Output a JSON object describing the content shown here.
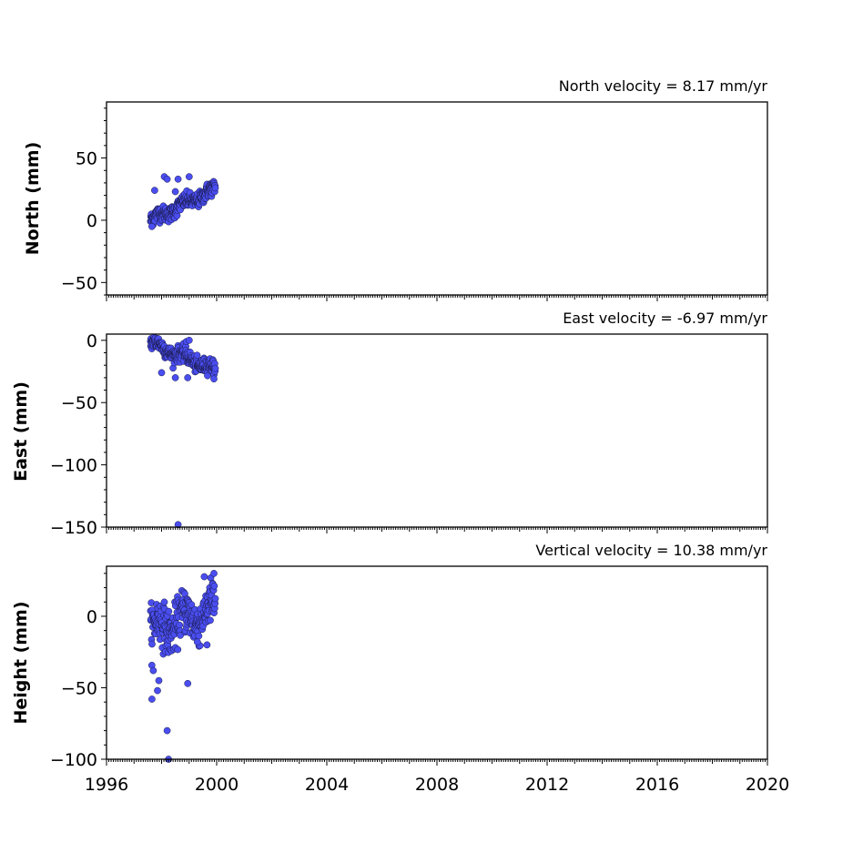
{
  "chart_data": [
    {
      "type": "scatter",
      "title": "North velocity = 8.17 mm/yr",
      "xlabel": "",
      "ylabel": "North (mm)",
      "xlim": [
        1996,
        2020
      ],
      "ylim": [
        -60,
        95
      ],
      "yticks": [
        {
          "value": 50,
          "label": "50"
        },
        {
          "value": 0,
          "label": "0"
        },
        {
          "value": -50,
          "label": "−50"
        }
      ],
      "grid": false,
      "color": "#4a4ef0",
      "series": [
        {
          "x_range": [
            1997.6,
            1999.95
          ],
          "trend_start": 0,
          "trend_end": 25,
          "noise": 5,
          "outliers": [
            [
              1998.1,
              35
            ],
            [
              1998.2,
              33
            ],
            [
              1998.6,
              33
            ],
            [
              1999.0,
              35
            ],
            [
              1998.5,
              23
            ],
            [
              1997.75,
              24
            ],
            [
              1997.65,
              -5
            ]
          ]
        }
      ]
    },
    {
      "type": "scatter",
      "title": "East velocity = -6.97 mm/yr",
      "xlabel": "",
      "ylabel": "East (mm)",
      "xlim": [
        1996,
        2020
      ],
      "ylim": [
        -150,
        5
      ],
      "yticks": [
        {
          "value": 0,
          "label": "0"
        },
        {
          "value": -50,
          "label": "−50"
        },
        {
          "value": -100,
          "label": "−100"
        },
        {
          "value": -150,
          "label": "−150"
        }
      ],
      "grid": false,
      "color": "#4a4ef0",
      "series": [
        {
          "x_range": [
            1997.6,
            1999.95
          ],
          "trend_start": -2,
          "trend_end": -24,
          "noise": 5,
          "outliers": [
            [
              1998.6,
              -148
            ],
            [
              1998.9,
              -1
            ],
            [
              1999.0,
              0
            ],
            [
              1998.0,
              -26
            ],
            [
              1998.5,
              -30
            ],
            [
              1998.95,
              -30
            ],
            [
              1999.9,
              -31
            ]
          ]
        }
      ]
    },
    {
      "type": "scatter",
      "title": "Vertical velocity = 10.38 mm/yr",
      "xlabel": "",
      "ylabel": "Height (mm)",
      "xlim": [
        1996,
        2020
      ],
      "ylim": [
        -100,
        35
      ],
      "yticks": [
        {
          "value": 0,
          "label": "0"
        },
        {
          "value": -50,
          "label": "−50"
        },
        {
          "value": -100,
          "label": "−100"
        }
      ],
      "xticks": [
        {
          "value": 1996,
          "label": "1996"
        },
        {
          "value": 2000,
          "label": "2000"
        },
        {
          "value": 2004,
          "label": "2004"
        },
        {
          "value": 2008,
          "label": "2008"
        },
        {
          "value": 2012,
          "label": "2012"
        },
        {
          "value": 2016,
          "label": "2016"
        },
        {
          "value": 2020,
          "label": "2020"
        }
      ],
      "grid": false,
      "color": "#4a4ef0",
      "series": [
        {
          "x_range": [
            1997.6,
            1999.95
          ],
          "trend_start": -10,
          "trend_end": 5,
          "noise": 13,
          "outliers": [
            [
              1997.65,
              -58
            ],
            [
              1997.7,
              -38
            ],
            [
              1997.85,
              -52
            ],
            [
              1997.9,
              -45
            ],
            [
              1998.2,
              -80
            ],
            [
              1998.25,
              -100
            ],
            [
              1998.95,
              -47
            ],
            [
              1999.3,
              -18
            ],
            [
              1999.65,
              -20
            ],
            [
              1999.9,
              30
            ]
          ]
        }
      ]
    }
  ]
}
